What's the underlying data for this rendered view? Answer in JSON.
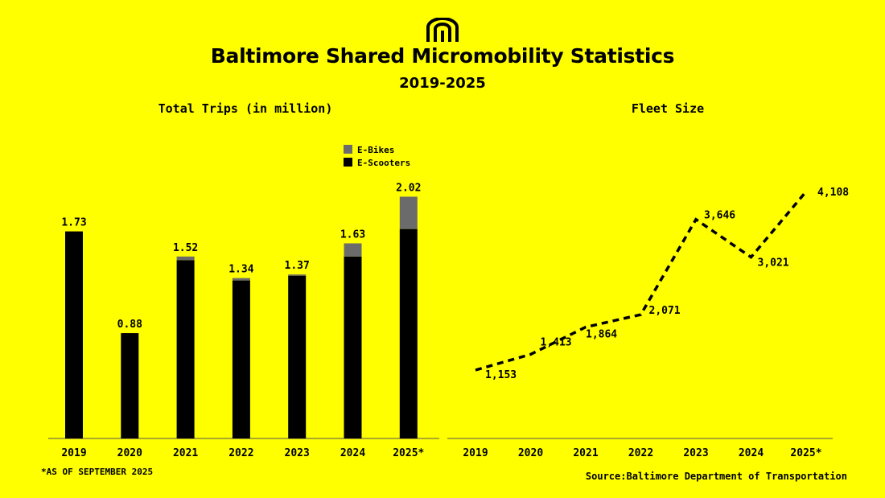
{
  "header": {
    "title": "Baltimore Shared Micromobility Statistics",
    "subtitle": "2019-2025"
  },
  "footnote": "*AS OF SEPTEMBER 2025",
  "source": "Source:Baltimore Department of Transportation",
  "colors": {
    "background": "#ffff00",
    "e_bikes": "#6b6b6b",
    "e_scooters": "#000000"
  },
  "chart_data": [
    {
      "type": "bar",
      "stacked": true,
      "title": "Total Trips (in million)",
      "categories": [
        "2019",
        "2020",
        "2021",
        "2022",
        "2023",
        "2024",
        "2025*"
      ],
      "totals": [
        "1.73",
        "0.88",
        "1.52",
        "1.34",
        "1.37",
        "1.63",
        "2.02"
      ],
      "series": [
        {
          "name": "E-Scooters",
          "values": [
            1.73,
            0.88,
            1.49,
            1.32,
            1.36,
            1.52,
            1.75
          ]
        },
        {
          "name": "E-Bikes",
          "values": [
            0.0,
            0.0,
            0.03,
            0.02,
            0.01,
            0.11,
            0.27
          ]
        }
      ],
      "legend": [
        "E-Bikes",
        "E-Scooters"
      ],
      "legend_position": "top-right",
      "ylim": [
        0,
        2.05
      ],
      "grid": false
    },
    {
      "type": "line",
      "title": "Fleet Size",
      "categories": [
        "2019",
        "2020",
        "2021",
        "2022",
        "2023",
        "2024",
        "2025*"
      ],
      "values": [
        1153,
        1413,
        1864,
        2071,
        3646,
        3021,
        4108
      ],
      "labels": [
        "1,153",
        "1,413",
        "1,864",
        "2,071",
        "3,646",
        "3,021",
        "4,108"
      ],
      "ylim": [
        0,
        4350
      ],
      "line_style": "dashed",
      "grid": false
    }
  ]
}
